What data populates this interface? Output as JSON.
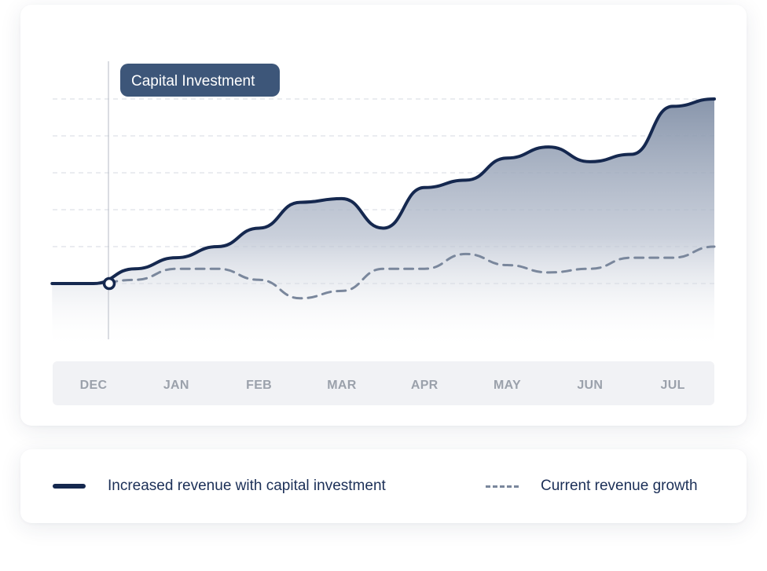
{
  "chart_data": {
    "type": "line",
    "title": "",
    "xlabel": "",
    "ylabel": "",
    "categories": [
      "DEC",
      "JAN",
      "FEB",
      "MAR",
      "APR",
      "MAY",
      "JUN",
      "JUL"
    ],
    "ylim": [
      0,
      6
    ],
    "grid": true,
    "legend_position": "bottom",
    "series": [
      {
        "name": "Increased revenue with capital investment",
        "style": "solid",
        "color": "#15284f",
        "area_fill": true,
        "points": [
          {
            "x": -0.5,
            "y": 1.0
          },
          {
            "x": 0.0,
            "y": 1.0
          },
          {
            "x": 0.5,
            "y": 1.4
          },
          {
            "x": 1.0,
            "y": 1.7
          },
          {
            "x": 1.5,
            "y": 2.0
          },
          {
            "x": 2.0,
            "y": 2.5
          },
          {
            "x": 2.5,
            "y": 3.2
          },
          {
            "x": 3.0,
            "y": 3.3
          },
          {
            "x": 3.5,
            "y": 2.5
          },
          {
            "x": 4.0,
            "y": 3.6
          },
          {
            "x": 4.5,
            "y": 3.8
          },
          {
            "x": 5.0,
            "y": 4.4
          },
          {
            "x": 5.5,
            "y": 4.7
          },
          {
            "x": 6.0,
            "y": 4.3
          },
          {
            "x": 6.5,
            "y": 4.5
          },
          {
            "x": 7.0,
            "y": 5.8
          },
          {
            "x": 7.5,
            "y": 6.0
          },
          {
            "x": 8.0,
            "y": 6.0
          }
        ]
      },
      {
        "name": "Current revenue growth",
        "style": "dashed",
        "color": "#7a879c",
        "area_fill": false,
        "points": [
          {
            "x": 0.0,
            "y": 1.0
          },
          {
            "x": 0.5,
            "y": 1.1
          },
          {
            "x": 1.0,
            "y": 1.4
          },
          {
            "x": 1.5,
            "y": 1.4
          },
          {
            "x": 2.0,
            "y": 1.1
          },
          {
            "x": 2.5,
            "y": 0.6
          },
          {
            "x": 3.0,
            "y": 0.8
          },
          {
            "x": 3.5,
            "y": 1.4
          },
          {
            "x": 4.0,
            "y": 1.4
          },
          {
            "x": 4.5,
            "y": 1.8
          },
          {
            "x": 5.0,
            "y": 1.5
          },
          {
            "x": 5.5,
            "y": 1.3
          },
          {
            "x": 6.0,
            "y": 1.4
          },
          {
            "x": 6.5,
            "y": 1.7
          },
          {
            "x": 7.0,
            "y": 1.7
          },
          {
            "x": 7.5,
            "y": 2.0
          },
          {
            "x": 8.0,
            "y": 2.0
          }
        ]
      }
    ],
    "annotations": [
      {
        "label": "Capital Investment",
        "x": 0.0,
        "y": 1.0
      }
    ]
  },
  "legend": {
    "solid_label": "Increased revenue with capital investment",
    "dashed_label": "Current revenue growth"
  },
  "colors": {
    "primary": "#15284f",
    "secondary": "#7a879c",
    "callout": "#3d5679",
    "area_top": "#8391a8"
  }
}
